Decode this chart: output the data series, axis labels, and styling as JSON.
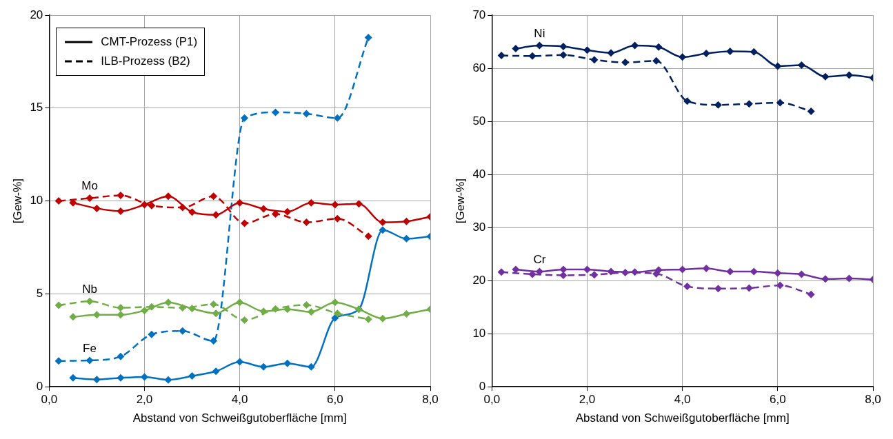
{
  "chart_data": [
    {
      "type": "line",
      "xlabel": "Abstand von Schweißgutoberfläche [mm]",
      "ylabel": "[Gew-%]",
      "xlim": [
        0,
        8
      ],
      "ylim": [
        0,
        20
      ],
      "xticks": [
        {
          "value": 0,
          "label": "0,0"
        },
        {
          "value": 2,
          "label": "2,0"
        },
        {
          "value": 4,
          "label": "4,0"
        },
        {
          "value": 6,
          "label": "6,0"
        },
        {
          "value": 8,
          "label": "8,0"
        }
      ],
      "yticks": [
        0,
        5,
        10,
        15,
        20
      ],
      "grid": true,
      "marker": "diamond",
      "annotations": [
        "CMT-Prozess (P1)",
        "ILB-Prozess (B2)"
      ],
      "series": [
        {
          "color": "#c00000",
          "line_style": "solid",
          "x": [
            0.5,
            1,
            1.5,
            2,
            2.5,
            3,
            3.5,
            4,
            4.5,
            5,
            5.5,
            6,
            6.5,
            7,
            7.5,
            8
          ],
          "values": [
            9.9,
            9.6,
            9.45,
            9.8,
            10.25,
            9.4,
            9.25,
            9.9,
            9.58,
            9.42,
            9.9,
            9.8,
            9.85,
            8.85,
            8.9,
            9.15
          ]
        },
        {
          "name": "Mo",
          "color": "#c00000",
          "line_style": "dashed",
          "x": [
            0.2,
            0.85,
            1.5,
            2.15,
            2.8,
            3.45,
            4.1,
            4.75,
            5.4,
            6.05,
            6.7
          ],
          "values": [
            10.0,
            10.15,
            10.3,
            9.75,
            9.65,
            10.25,
            8.8,
            9.3,
            8.85,
            9.05,
            8.1
          ]
        },
        {
          "color": "#70ad47",
          "line_style": "solid",
          "x": [
            0.5,
            1,
            1.5,
            2,
            2.5,
            3,
            3.5,
            4,
            4.5,
            5,
            5.5,
            6,
            6.5,
            7,
            7.5,
            8
          ],
          "values": [
            3.76,
            3.87,
            3.87,
            4.1,
            4.54,
            4.21,
            3.95,
            4.54,
            4.06,
            4.17,
            4.03,
            4.54,
            4.17,
            3.67,
            3.92,
            4.17
          ]
        },
        {
          "name": "Nb",
          "color": "#70ad47",
          "line_style": "dashed",
          "x": [
            0.2,
            0.85,
            1.5,
            2.15,
            2.8,
            3.45,
            4.1,
            4.75,
            5.4,
            6.05,
            6.7
          ],
          "values": [
            4.38,
            4.6,
            4.25,
            4.3,
            4.25,
            4.44,
            3.59,
            4.19,
            4.4,
            3.95,
            3.63
          ]
        },
        {
          "color": "#0070c0",
          "line_style": "solid",
          "x": [
            0.5,
            1,
            1.5,
            2,
            2.5,
            3,
            3.5,
            4,
            4.5,
            5,
            5.5,
            6,
            6.5,
            7,
            7.5,
            8
          ],
          "values": [
            0.48,
            0.39,
            0.48,
            0.53,
            0.37,
            0.58,
            0.83,
            1.34,
            1.07,
            1.26,
            1.07,
            3.7,
            4.17,
            8.44,
            7.97,
            8.09
          ]
        },
        {
          "name": "Fe",
          "color": "#0070c0",
          "line_style": "dashed",
          "x": [
            0.2,
            0.85,
            1.5,
            2.15,
            2.8,
            3.45,
            4.1,
            4.75,
            5.4,
            6.05,
            6.7
          ],
          "values": [
            1.39,
            1.42,
            1.63,
            2.82,
            3.0,
            2.47,
            14.46,
            14.77,
            14.7,
            14.46,
            18.79
          ]
        }
      ]
    },
    {
      "type": "line",
      "xlabel": "Abstand von Schweißgutoberfläche [mm]",
      "ylabel": "[Gew-%]",
      "xlim": [
        0,
        8
      ],
      "ylim": [
        0,
        70
      ],
      "xticks": [
        {
          "value": 0,
          "label": "0,0"
        },
        {
          "value": 2,
          "label": "2,0"
        },
        {
          "value": 4,
          "label": "4,0"
        },
        {
          "value": 6,
          "label": "6,0"
        },
        {
          "value": 8,
          "label": "8,0"
        }
      ],
      "yticks": [
        0,
        10,
        20,
        30,
        40,
        50,
        60,
        70
      ],
      "grid": true,
      "marker": "diamond",
      "series": [
        {
          "name": "Ni",
          "color": "#002060",
          "line_style": "solid",
          "x": [
            0.5,
            1,
            1.5,
            2,
            2.5,
            3,
            3.5,
            4,
            4.5,
            5,
            5.5,
            6,
            6.5,
            7,
            7.5,
            8
          ],
          "values": [
            63.7,
            64.3,
            64.1,
            63.4,
            62.9,
            64.3,
            64.0,
            62.1,
            62.8,
            63.2,
            63.1,
            60.4,
            60.6,
            58.4,
            58.7,
            58.2
          ]
        },
        {
          "color": "#002060",
          "line_style": "dashed",
          "x": [
            0.2,
            0.85,
            1.5,
            2.15,
            2.8,
            3.45,
            4.1,
            4.75,
            5.4,
            6.05,
            6.7
          ],
          "values": [
            62.4,
            62.3,
            62.5,
            61.6,
            61.1,
            61.4,
            53.8,
            53.1,
            53.3,
            53.5,
            51.9
          ]
        },
        {
          "name": "Cr",
          "color": "#7030a0",
          "line_style": "solid",
          "x": [
            0.5,
            1,
            1.5,
            2,
            2.5,
            3,
            3.5,
            4,
            4.5,
            5,
            5.5,
            6,
            6.5,
            7,
            7.5,
            8
          ],
          "values": [
            22.1,
            21.7,
            22.1,
            22.1,
            21.7,
            21.6,
            22.0,
            22.1,
            22.3,
            21.7,
            21.7,
            21.4,
            21.2,
            20.3,
            20.4,
            20.2
          ]
        },
        {
          "color": "#7030a0",
          "line_style": "dashed",
          "x": [
            0.2,
            0.85,
            1.5,
            2.15,
            2.8,
            3.45,
            4.1,
            4.75,
            5.4,
            6.05,
            6.7
          ],
          "values": [
            21.6,
            21.2,
            21.0,
            21.1,
            21.5,
            21.3,
            18.9,
            18.5,
            18.6,
            19.1,
            17.4
          ]
        }
      ]
    }
  ]
}
